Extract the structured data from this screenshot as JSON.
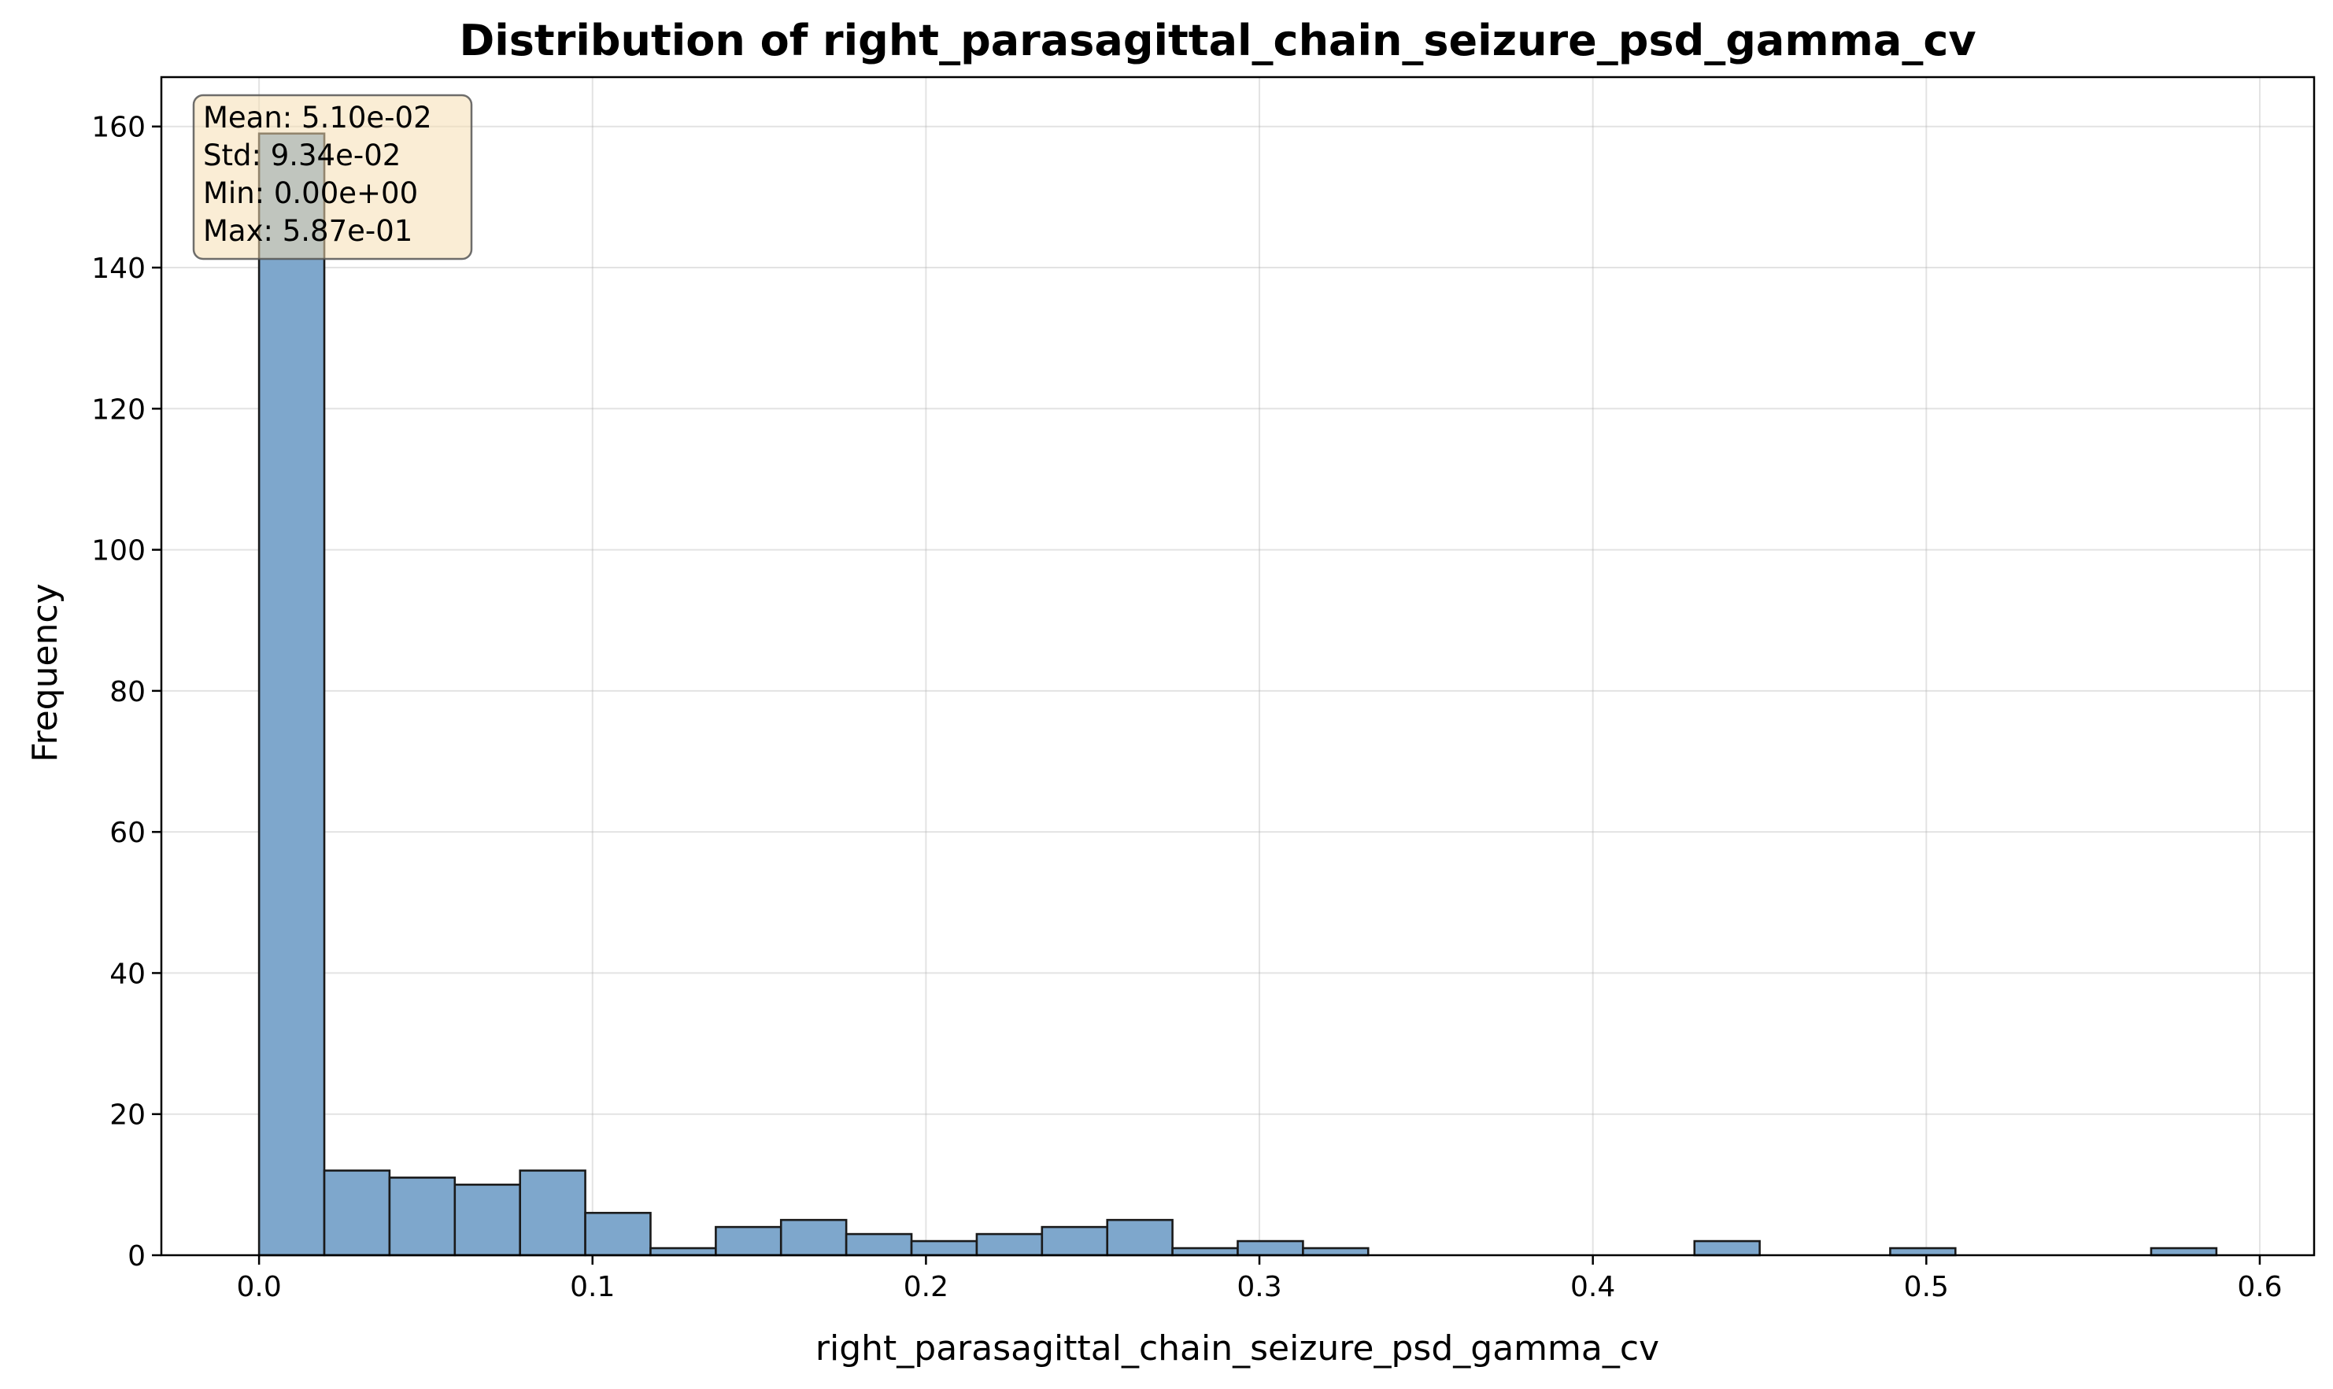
{
  "chart_data": {
    "type": "bar",
    "title": "Distribution of right_parasagittal_chain_seizure_psd_gamma_cv",
    "xlabel": "right_parasagittal_chain_seizure_psd_gamma_cv",
    "ylabel": "Frequency",
    "xlim": [
      -0.0293,
      0.6163
    ],
    "ylim": [
      0,
      167
    ],
    "grid": true,
    "bar_color": "#7ea7cc",
    "edge_color": "#1a1a1a",
    "bin_edges": [
      0.0,
      0.01957,
      0.03913,
      0.0587,
      0.07827,
      0.09783,
      0.1174,
      0.13697,
      0.15653,
      0.1761,
      0.19567,
      0.21523,
      0.2348,
      0.25437,
      0.27393,
      0.2935,
      0.31307,
      0.33263,
      0.3522,
      0.37177,
      0.39133,
      0.4109,
      0.43047,
      0.45003,
      0.4696,
      0.48917,
      0.50873,
      0.5283,
      0.54787,
      0.56743,
      0.587
    ],
    "counts": [
      159,
      12,
      11,
      10,
      12,
      6,
      1,
      4,
      5,
      3,
      2,
      3,
      4,
      5,
      1,
      2,
      1,
      0,
      0,
      0,
      0,
      0,
      2,
      0,
      0,
      1,
      0,
      0,
      0,
      1
    ],
    "x_ticks": [
      0.0,
      0.1,
      0.2,
      0.3,
      0.4,
      0.5,
      0.6
    ],
    "x_tick_labels": [
      "0.0",
      "0.1",
      "0.2",
      "0.3",
      "0.4",
      "0.5",
      "0.6"
    ],
    "y_ticks": [
      0,
      20,
      40,
      60,
      80,
      100,
      120,
      140,
      160
    ],
    "y_tick_labels": [
      "0",
      "20",
      "40",
      "60",
      "80",
      "100",
      "120",
      "140",
      "160"
    ],
    "stats_box": {
      "lines": [
        "Mean: 5.10e-02",
        "Std: 9.34e-02",
        "Min: 0.00e+00",
        "Max: 5.87e-01"
      ],
      "placement": "top-left",
      "background": "#f5deb3"
    }
  }
}
